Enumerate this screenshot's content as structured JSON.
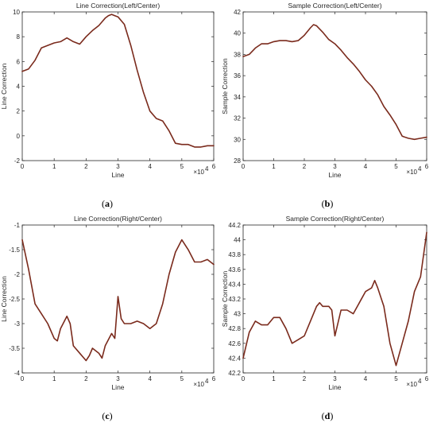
{
  "chart_data": [
    {
      "type": "line",
      "caption": "(a)",
      "title": "Line Correction(Left/Center)",
      "xlabel": "Line",
      "ylabel": "Line Correction",
      "x_exponent": "×10",
      "x_exponent_power": "4",
      "xlim": [
        0,
        6
      ],
      "ylim": [
        -2,
        10
      ],
      "xticks": [
        "0",
        "1",
        "2",
        "3",
        "4",
        "5",
        "6"
      ],
      "yticks": [
        "-2",
        "0",
        "2",
        "4",
        "6",
        "8",
        "10"
      ],
      "line_color": "#7a2a1c",
      "series": [
        {
          "x": [
            0,
            0.2,
            0.4,
            0.6,
            0.8,
            1.0,
            1.2,
            1.4,
            1.6,
            1.8,
            2.0,
            2.2,
            2.4,
            2.6,
            2.7,
            2.8,
            2.9,
            3.0,
            3.2,
            3.4,
            3.6,
            3.8,
            4.0,
            4.2,
            4.4,
            4.6,
            4.8,
            5.0,
            5.2,
            5.4,
            5.6,
            5.8,
            6.0
          ],
          "y": [
            5.2,
            5.4,
            6.1,
            7.1,
            7.3,
            7.5,
            7.6,
            7.9,
            7.6,
            7.4,
            8.0,
            8.5,
            8.9,
            9.5,
            9.7,
            9.8,
            9.7,
            9.6,
            9.0,
            7.3,
            5.3,
            3.5,
            2.0,
            1.4,
            1.2,
            0.4,
            -0.6,
            -0.7,
            -0.7,
            -0.9,
            -0.9,
            -0.8,
            -0.8
          ]
        }
      ]
    },
    {
      "type": "line",
      "caption": "(b)",
      "title": "Sample Correction(Left/Center)",
      "xlabel": "Line",
      "ylabel": "Sample Correction",
      "x_exponent": "×10",
      "x_exponent_power": "4",
      "xlim": [
        0,
        6
      ],
      "ylim": [
        28,
        42
      ],
      "xticks": [
        "0",
        "1",
        "2",
        "3",
        "4",
        "5",
        "6"
      ],
      "yticks": [
        "28",
        "30",
        "32",
        "34",
        "36",
        "38",
        "40",
        "42"
      ],
      "line_color": "#7a2a1c",
      "series": [
        {
          "x": [
            0,
            0.2,
            0.4,
            0.6,
            0.8,
            1.0,
            1.2,
            1.4,
            1.6,
            1.8,
            2.0,
            2.2,
            2.3,
            2.4,
            2.6,
            2.8,
            3.0,
            3.2,
            3.4,
            3.6,
            3.8,
            4.0,
            4.2,
            4.4,
            4.6,
            4.8,
            5.0,
            5.2,
            5.4,
            5.6,
            5.8,
            6.0
          ],
          "y": [
            37.8,
            38.0,
            38.6,
            39.0,
            39.0,
            39.2,
            39.3,
            39.3,
            39.2,
            39.3,
            39.8,
            40.5,
            40.8,
            40.7,
            40.1,
            39.4,
            39.0,
            38.4,
            37.7,
            37.1,
            36.4,
            35.6,
            35.0,
            34.2,
            33.1,
            32.3,
            31.4,
            30.3,
            30.1,
            30.0,
            30.1,
            30.2
          ]
        }
      ]
    },
    {
      "type": "line",
      "caption": "(c)",
      "title": "Line Correction(Right/Center)",
      "xlabel": "Line",
      "ylabel": "Line Correction",
      "x_exponent": "×10",
      "x_exponent_power": "4",
      "xlim": [
        0,
        6
      ],
      "ylim": [
        -4,
        -1
      ],
      "xticks": [
        "0",
        "1",
        "2",
        "3",
        "4",
        "5",
        "6"
      ],
      "yticks": [
        "-4",
        "-3.5",
        "-3",
        "-2.5",
        "-2",
        "-1.5",
        "-1"
      ],
      "line_color": "#7a2a1c",
      "series": [
        {
          "x": [
            0,
            0.2,
            0.4,
            0.6,
            0.8,
            1.0,
            1.1,
            1.2,
            1.4,
            1.5,
            1.6,
            1.8,
            2.0,
            2.1,
            2.2,
            2.4,
            2.5,
            2.6,
            2.8,
            2.9,
            3.0,
            3.1,
            3.2,
            3.4,
            3.6,
            3.8,
            4.0,
            4.2,
            4.4,
            4.6,
            4.8,
            5.0,
            5.2,
            5.4,
            5.6,
            5.8,
            6.0
          ],
          "y": [
            -1.3,
            -1.9,
            -2.6,
            -2.8,
            -3.0,
            -3.3,
            -3.35,
            -3.1,
            -2.85,
            -3.0,
            -3.45,
            -3.6,
            -3.75,
            -3.65,
            -3.5,
            -3.6,
            -3.7,
            -3.45,
            -3.2,
            -3.3,
            -2.45,
            -2.9,
            -3.0,
            -3.0,
            -2.95,
            -3.0,
            -3.1,
            -3.0,
            -2.6,
            -2.0,
            -1.55,
            -1.3,
            -1.5,
            -1.75,
            -1.75,
            -1.7,
            -1.8
          ]
        }
      ]
    },
    {
      "type": "line",
      "caption": "(d)",
      "title": "Sample Correction(Right/Center)",
      "xlabel": "Line",
      "ylabel": "Sample Correction",
      "x_exponent": "×10",
      "x_exponent_power": "4",
      "xlim": [
        0,
        6
      ],
      "ylim": [
        42.2,
        44.2
      ],
      "xticks": [
        "0",
        "1",
        "2",
        "3",
        "4",
        "5",
        "6"
      ],
      "yticks": [
        "42.2",
        "42.4",
        "42.6",
        "42.8",
        "43",
        "43.2",
        "43.4",
        "43.6",
        "43.8",
        "44",
        "44.2"
      ],
      "line_color": "#7a2a1c",
      "series": [
        {
          "x": [
            0,
            0.2,
            0.4,
            0.6,
            0.8,
            1.0,
            1.2,
            1.4,
            1.6,
            1.8,
            2.0,
            2.2,
            2.4,
            2.5,
            2.6,
            2.8,
            2.9,
            3.0,
            3.2,
            3.4,
            3.6,
            3.8,
            4.0,
            4.2,
            4.3,
            4.4,
            4.6,
            4.8,
            5.0,
            5.2,
            5.4,
            5.6,
            5.8,
            6.0
          ],
          "y": [
            42.4,
            42.75,
            42.9,
            42.85,
            42.85,
            42.95,
            42.95,
            42.8,
            42.6,
            42.65,
            42.7,
            42.9,
            43.1,
            43.15,
            43.1,
            43.1,
            43.05,
            42.7,
            43.05,
            43.05,
            43.0,
            43.15,
            43.3,
            43.35,
            43.45,
            43.35,
            43.1,
            42.6,
            42.3,
            42.6,
            42.9,
            43.3,
            43.5,
            44.1
          ]
        }
      ]
    }
  ]
}
